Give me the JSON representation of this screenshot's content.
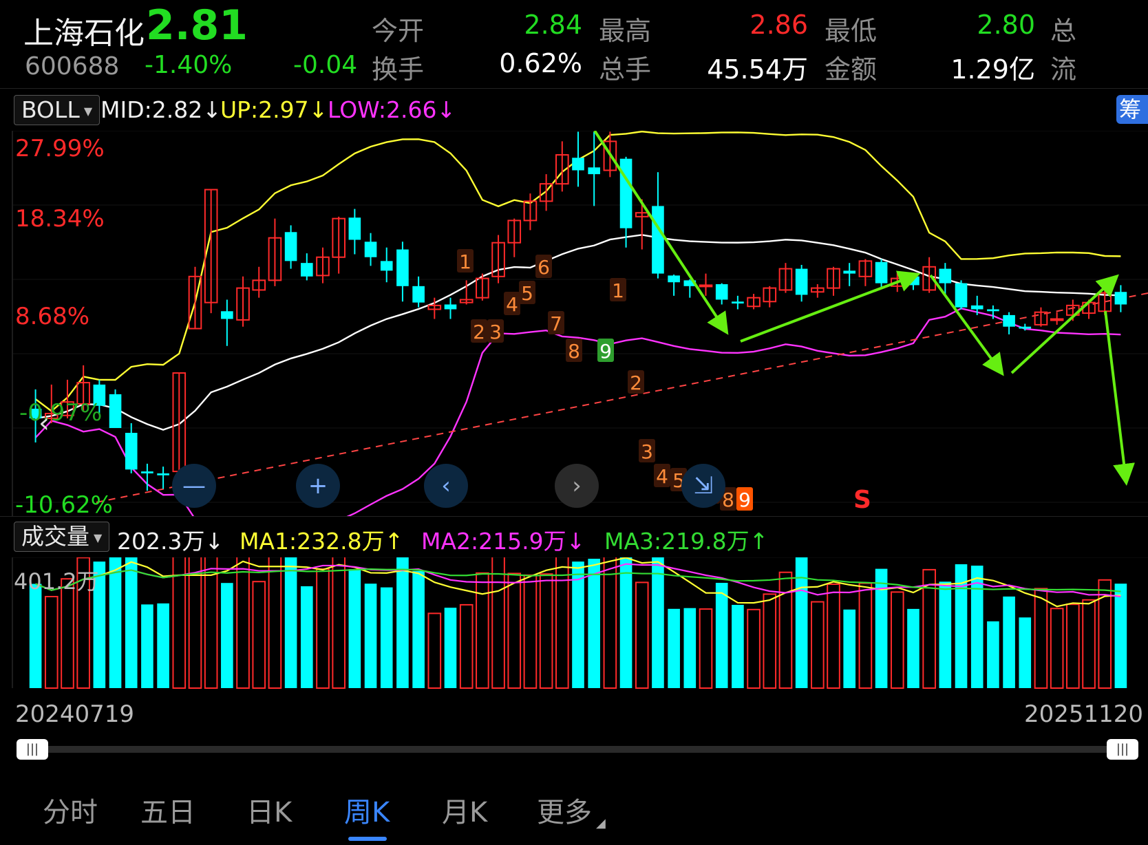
{
  "quote": {
    "name": "上海石化",
    "price": "2.81",
    "code": "600688",
    "change_pct": "-1.40%",
    "change": "-0.04",
    "fields_row1": [
      {
        "label": "今开",
        "value": "2.84",
        "color": "#22dd22"
      },
      {
        "label": "最高",
        "value": "2.86",
        "color": "#ff2a2a"
      },
      {
        "label": "最低",
        "value": "2.80",
        "color": "#22dd22"
      }
    ],
    "fields_row2": [
      {
        "label": "换手",
        "value": "0.62%",
        "color": "#ffffff"
      },
      {
        "label": "总手",
        "value": "45.54万",
        "color": "#ffffff"
      },
      {
        "label": "金额",
        "value": "1.29亿",
        "color": "#ffffff"
      }
    ],
    "cut_label_1": "总",
    "cut_label_2": "流"
  },
  "indicator": {
    "name": "BOLL",
    "mid": "MID:2.82↓",
    "up": "UP:2.97↓",
    "low": "LOW:2.66↓",
    "chip_button": "筹"
  },
  "main_chart": {
    "pct_labels": [
      "27.99%",
      "18.34%",
      "8.68%",
      "-0.97%",
      "-10.62%"
    ],
    "marker_s": "S"
  },
  "volume": {
    "name": "成交量",
    "value": "202.3万↓",
    "ma1": "MA1:232.8万↑",
    "ma2": "MA2:215.9万↓",
    "ma3": "MA3:219.8万↑",
    "max_label": "401.2万"
  },
  "dates": {
    "start": "20240719",
    "end": "20251120"
  },
  "nav": [
    "分时",
    "五日",
    "日K",
    "周K",
    "月K",
    "更多"
  ],
  "nav_active": "周K",
  "colors": {
    "up": "#ff2a2a",
    "down": "#00ffff",
    "mid": "#ffffff",
    "upper": "#ffff33",
    "lower": "#ff33ff",
    "arrow": "#66ee11",
    "accent": "#3a86ff"
  },
  "chart_data": {
    "type": "candlestick",
    "candles": [
      {
        "o": 2.715,
        "c": 2.705,
        "h": 2.735,
        "l": 2.68
      },
      {
        "o": 2.705,
        "c": 2.71,
        "h": 2.74,
        "l": 2.7
      },
      {
        "o": 2.708,
        "c": 2.722,
        "h": 2.745,
        "l": 2.705
      },
      {
        "o": 2.72,
        "c": 2.742,
        "h": 2.76,
        "l": 2.712
      },
      {
        "o": 2.74,
        "c": 2.718,
        "h": 2.745,
        "l": 2.71
      },
      {
        "o": 2.73,
        "c": 2.695,
        "h": 2.735,
        "l": 2.695
      },
      {
        "o": 2.69,
        "c": 2.652,
        "h": 2.7,
        "l": 2.648
      },
      {
        "o": 2.65,
        "c": 2.648,
        "h": 2.658,
        "l": 2.63
      },
      {
        "o": 2.648,
        "c": 2.646,
        "h": 2.655,
        "l": 2.632
      },
      {
        "o": 2.65,
        "c": 2.752,
        "h": 2.752,
        "l": 2.64
      },
      {
        "o": 2.798,
        "c": 2.852,
        "h": 2.862,
        "l": 2.798
      },
      {
        "o": 2.825,
        "c": 2.942,
        "h": 2.942,
        "l": 2.814
      },
      {
        "o": 2.816,
        "c": 2.808,
        "h": 2.828,
        "l": 2.78
      },
      {
        "o": 2.807,
        "c": 2.84,
        "h": 2.852,
        "l": 2.8
      },
      {
        "o": 2.838,
        "c": 2.848,
        "h": 2.862,
        "l": 2.83
      },
      {
        "o": 2.848,
        "c": 2.892,
        "h": 2.912,
        "l": 2.842
      },
      {
        "o": 2.898,
        "c": 2.868,
        "h": 2.905,
        "l": 2.86
      },
      {
        "o": 2.866,
        "c": 2.852,
        "h": 2.876,
        "l": 2.848
      },
      {
        "o": 2.853,
        "c": 2.872,
        "h": 2.882,
        "l": 2.845
      },
      {
        "o": 2.872,
        "c": 2.912,
        "h": 2.914,
        "l": 2.855
      },
      {
        "o": 2.913,
        "c": 2.89,
        "h": 2.922,
        "l": 2.875
      },
      {
        "o": 2.888,
        "c": 2.872,
        "h": 2.897,
        "l": 2.863
      },
      {
        "o": 2.868,
        "c": 2.858,
        "h": 2.882,
        "l": 2.846
      },
      {
        "o": 2.88,
        "c": 2.842,
        "h": 2.888,
        "l": 2.826
      },
      {
        "o": 2.842,
        "c": 2.825,
        "h": 2.852,
        "l": 2.82
      },
      {
        "o": 2.818,
        "c": 2.822,
        "h": 2.83,
        "l": 2.808
      },
      {
        "o": 2.823,
        "c": 2.818,
        "h": 2.83,
        "l": 2.808
      },
      {
        "o": 2.825,
        "c": 2.828,
        "h": 2.848,
        "l": 2.823
      },
      {
        "o": 2.83,
        "c": 2.85,
        "h": 2.855,
        "l": 2.827
      },
      {
        "o": 2.852,
        "c": 2.887,
        "h": 2.895,
        "l": 2.845
      },
      {
        "o": 2.887,
        "c": 2.91,
        "h": 2.912,
        "l": 2.872
      },
      {
        "o": 2.91,
        "c": 2.93,
        "h": 2.938,
        "l": 2.9
      },
      {
        "o": 2.93,
        "c": 2.948,
        "h": 2.958,
        "l": 2.92
      },
      {
        "o": 2.948,
        "c": 2.978,
        "h": 2.992,
        "l": 2.94
      },
      {
        "o": 2.975,
        "c": 2.962,
        "h": 3.002,
        "l": 2.945
      },
      {
        "o": 2.965,
        "c": 2.958,
        "h": 3.002,
        "l": 2.925
      },
      {
        "o": 2.962,
        "c": 2.992,
        "h": 3.002,
        "l": 2.955
      },
      {
        "o": 2.974,
        "c": 2.902,
        "h": 2.976,
        "l": 2.882
      },
      {
        "o": 2.914,
        "c": 2.918,
        "h": 2.932,
        "l": 2.88
      },
      {
        "o": 2.925,
        "c": 2.855,
        "h": 2.96,
        "l": 2.85
      },
      {
        "o": 2.853,
        "c": 2.846,
        "h": 2.854,
        "l": 2.832
      },
      {
        "o": 2.848,
        "c": 2.842,
        "h": 2.849,
        "l": 2.83
      },
      {
        "o": 2.842,
        "c": 2.843,
        "h": 2.855,
        "l": 2.832
      },
      {
        "o": 2.844,
        "c": 2.828,
        "h": 2.845,
        "l": 2.823
      },
      {
        "o": 2.826,
        "c": 2.824,
        "h": 2.832,
        "l": 2.818
      },
      {
        "o": 2.821,
        "c": 2.83,
        "h": 2.834,
        "l": 2.818
      },
      {
        "o": 2.826,
        "c": 2.84,
        "h": 2.842,
        "l": 2.82
      },
      {
        "o": 2.838,
        "c": 2.86,
        "h": 2.866,
        "l": 2.835
      },
      {
        "o": 2.86,
        "c": 2.833,
        "h": 2.864,
        "l": 2.826
      },
      {
        "o": 2.836,
        "c": 2.84,
        "h": 2.844,
        "l": 2.83
      },
      {
        "o": 2.84,
        "c": 2.86,
        "h": 2.862,
        "l": 2.832
      },
      {
        "o": 2.858,
        "c": 2.855,
        "h": 2.866,
        "l": 2.842
      },
      {
        "o": 2.852,
        "c": 2.868,
        "h": 2.87,
        "l": 2.842
      },
      {
        "o": 2.867,
        "c": 2.845,
        "h": 2.87,
        "l": 2.84
      },
      {
        "o": 2.842,
        "c": 2.85,
        "h": 2.856,
        "l": 2.836
      },
      {
        "o": 2.852,
        "c": 2.843,
        "h": 2.855,
        "l": 2.838
      },
      {
        "o": 2.838,
        "c": 2.862,
        "h": 2.872,
        "l": 2.835
      },
      {
        "o": 2.86,
        "c": 2.845,
        "h": 2.866,
        "l": 2.833
      },
      {
        "o": 2.845,
        "c": 2.82,
        "h": 2.848,
        "l": 2.818
      },
      {
        "o": 2.822,
        "c": 2.818,
        "h": 2.832,
        "l": 2.812
      },
      {
        "o": 2.818,
        "c": 2.816,
        "h": 2.822,
        "l": 2.808
      },
      {
        "o": 2.812,
        "c": 2.8,
        "h": 2.815,
        "l": 2.792
      },
      {
        "o": 2.8,
        "c": 2.798,
        "h": 2.803,
        "l": 2.796
      },
      {
        "o": 2.802,
        "c": 2.815,
        "h": 2.82,
        "l": 2.8
      },
      {
        "o": 2.808,
        "c": 2.808,
        "h": 2.815,
        "l": 2.802
      },
      {
        "o": 2.812,
        "c": 2.822,
        "h": 2.828,
        "l": 2.806
      },
      {
        "o": 2.814,
        "c": 2.825,
        "h": 2.828,
        "l": 2.808
      },
      {
        "o": 2.816,
        "c": 2.835,
        "h": 2.838,
        "l": 2.812
      },
      {
        "o": 2.836,
        "c": 2.823,
        "h": 2.843,
        "l": 2.815
      }
    ],
    "volume_max": "401.2万"
  }
}
